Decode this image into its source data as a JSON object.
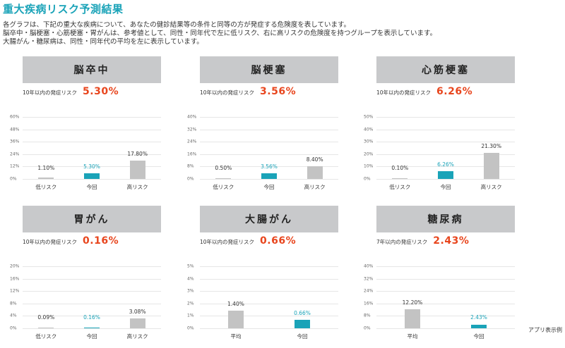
{
  "page": {
    "title": "重大疾病リスク予測結果",
    "description": [
      "各グラフは、下記の重大な疾病について、あなたの健診結果等の条件と同等の方が発症する危険度を表しています。",
      "脳卒中・脳梗塞・心筋梗塞・胃がんは、参考値として、同性・同年代で左に低リスク、右に高リスクの危険度を持つグループを表示しています。",
      "大腸がん・糖尿病は、同性・同年代の平均を左に表示しています。"
    ],
    "footnote": "アプリ表示例"
  },
  "colors": {
    "title": "#1aa3b8",
    "header_bg": "#c8c9cb",
    "risk_value": "#e8461e",
    "current_bar": "#1aa3b8",
    "other_bar": "#c3c3c3"
  },
  "panels": [
    {
      "name": "脳卒中",
      "risk_label": "10年以内の発症リスク",
      "risk_value": "5.30%"
    },
    {
      "name": "脳梗塞",
      "risk_label": "10年以内の発症リスク",
      "risk_value": "3.56%"
    },
    {
      "name": "心筋梗塞",
      "risk_label": "10年以内の発症リスク",
      "risk_value": "6.26%"
    },
    {
      "name": "胃がん",
      "risk_label": "10年以内の発症リスク",
      "risk_value": "0.16%"
    },
    {
      "name": "大腸がん",
      "risk_label": "10年以内の発症リスク",
      "risk_value": "0.66%"
    },
    {
      "name": "糖尿病",
      "risk_label": "7年以内の発症リスク",
      "risk_value": "2.43%"
    }
  ],
  "chart_data": [
    {
      "type": "bar",
      "title": "脳卒中",
      "categories": [
        "低リスク",
        "今回",
        "高リスク"
      ],
      "values": [
        1.1,
        5.3,
        17.8
      ],
      "value_labels": [
        "1.10%",
        "5.30%",
        "17.80%"
      ],
      "highlight_index": 1,
      "ylim": [
        0,
        60
      ],
      "yticks": [
        "0%",
        "12%",
        "24%",
        "36%",
        "48%",
        "60%"
      ],
      "grid": true
    },
    {
      "type": "bar",
      "title": "脳梗塞",
      "categories": [
        "低リスク",
        "今回",
        "高リスク"
      ],
      "values": [
        0.5,
        3.56,
        8.4
      ],
      "value_labels": [
        "0.50%",
        "3.56%",
        "8.40%"
      ],
      "highlight_index": 1,
      "ylim": [
        0,
        40
      ],
      "yticks": [
        "0%",
        "8%",
        "16%",
        "24%",
        "32%",
        "40%"
      ],
      "grid": true
    },
    {
      "type": "bar",
      "title": "心筋梗塞",
      "categories": [
        "低リスク",
        "今回",
        "高リスク"
      ],
      "values": [
        0.1,
        6.26,
        21.3
      ],
      "value_labels": [
        "0.10%",
        "6.26%",
        "21.30%"
      ],
      "highlight_index": 1,
      "ylim": [
        0,
        50
      ],
      "yticks": [
        "0%",
        "10%",
        "20%",
        "30%",
        "40%",
        "50%"
      ],
      "grid": true
    },
    {
      "type": "bar",
      "title": "胃がん",
      "categories": [
        "低リスク",
        "今回",
        "高リスク"
      ],
      "values": [
        0.09,
        0.16,
        3.08
      ],
      "value_labels": [
        "0.09%",
        "0.16%",
        "3.08%"
      ],
      "highlight_index": 1,
      "ylim": [
        0,
        20
      ],
      "yticks": [
        "0%",
        "4%",
        "8%",
        "12%",
        "16%",
        "20%"
      ],
      "grid": true
    },
    {
      "type": "bar",
      "title": "大腸がん",
      "categories": [
        "平均",
        "今回"
      ],
      "values": [
        1.4,
        0.66
      ],
      "value_labels": [
        "1.40%",
        "0.66%"
      ],
      "highlight_index": 1,
      "ylim": [
        0,
        5
      ],
      "yticks": [
        "0%",
        "1%",
        "2%",
        "3%",
        "4%",
        "5%"
      ],
      "grid": true
    },
    {
      "type": "bar",
      "title": "糖尿病",
      "categories": [
        "平均",
        "今回"
      ],
      "values": [
        12.2,
        2.43
      ],
      "value_labels": [
        "12.20%",
        "2.43%"
      ],
      "highlight_index": 1,
      "ylim": [
        0,
        40
      ],
      "yticks": [
        "0%",
        "8%",
        "16%",
        "24%",
        "32%",
        "40%"
      ],
      "grid": true
    }
  ]
}
